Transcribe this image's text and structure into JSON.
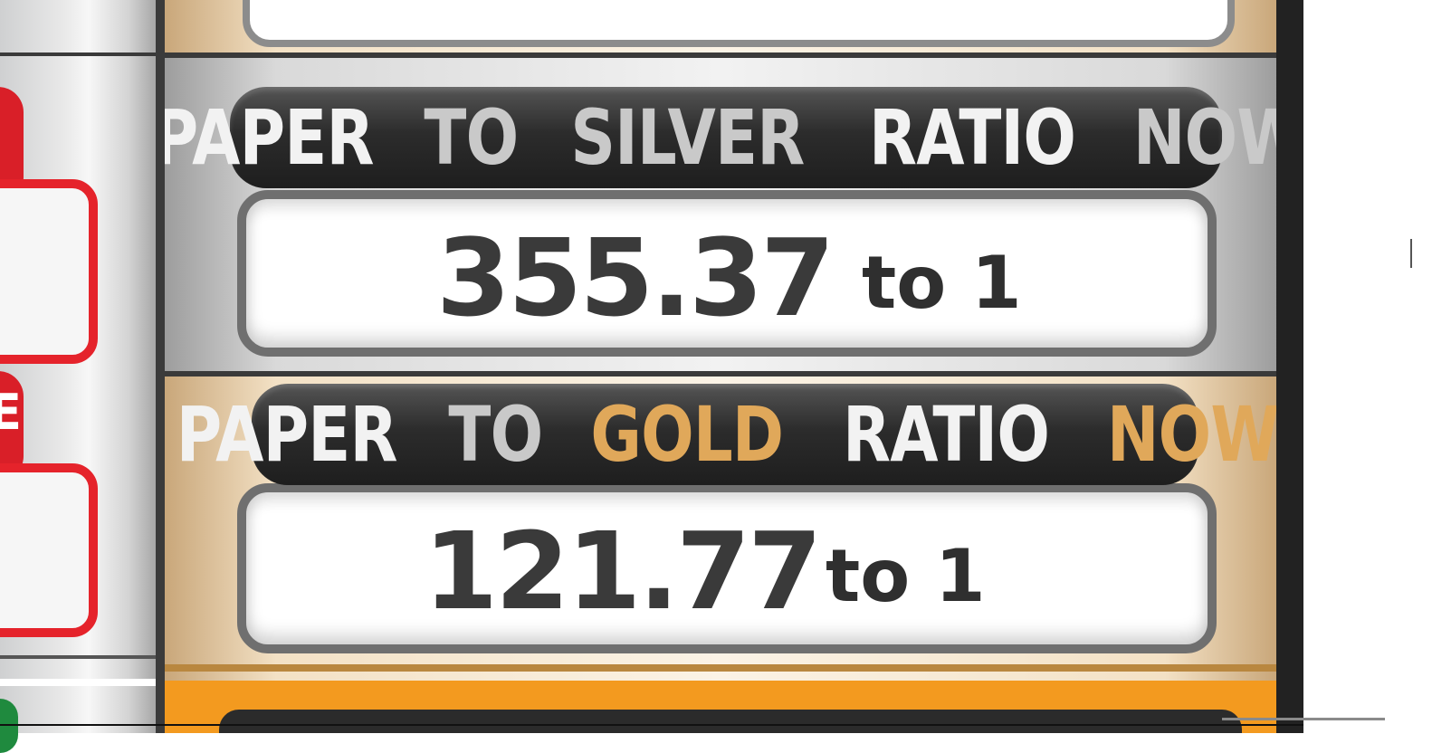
{
  "silver_panel": {
    "label_words": [
      "PAPER",
      "TO",
      "SILVER",
      "RATIO",
      "NOW"
    ],
    "value": "355.37",
    "unit": "to 1"
  },
  "gold_panel": {
    "label_words": [
      "PAPER",
      "TO",
      "GOLD",
      "RATIO",
      "NOW"
    ],
    "value": "121.77",
    "unit": "to 1"
  },
  "left_tab_glyph": "E",
  "colors": {
    "label_white": "#f2f2f2",
    "label_silver": "#c9c9c9",
    "label_gold": "#e0a85a",
    "accent_red": "#e5232b",
    "accent_orange": "#f39a1f"
  }
}
